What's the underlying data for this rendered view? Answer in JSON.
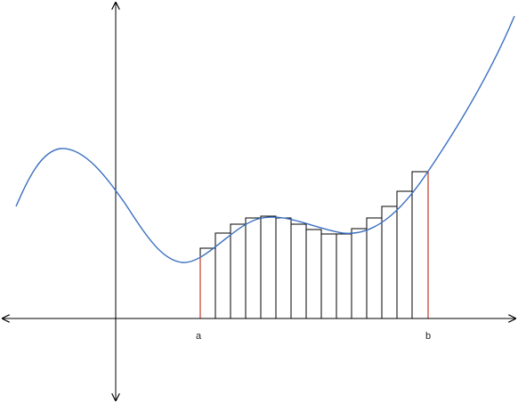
{
  "figure": {
    "endpoint_labels": {
      "a": "a",
      "b": "b"
    },
    "rectangle_count": 15,
    "colors": {
      "curve": "#3a6fc0",
      "axes": "#000000",
      "rect_stroke": "#000000",
      "bound_lines": "#c0392b"
    }
  }
}
